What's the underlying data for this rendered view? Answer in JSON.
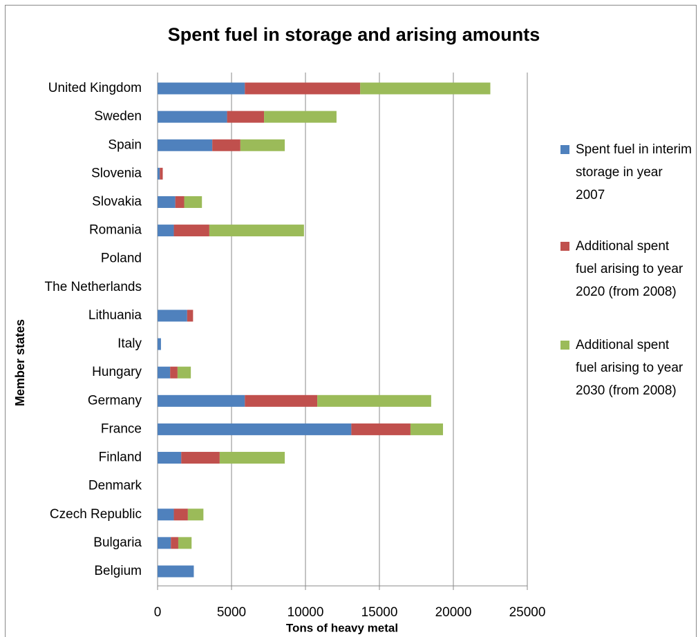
{
  "chart_data": {
    "type": "bar",
    "orientation": "horizontal",
    "stacked": true,
    "title": "Spent fuel in storage and arising amounts",
    "x_label": "Tons of heavy metal",
    "y_label": "Member states",
    "categories": [
      "United Kingdom",
      "Sweden",
      "Spain",
      "Slovenia",
      "Slovakia",
      "Romania",
      "Poland",
      "The Netherlands",
      "Lithuania",
      "Italy",
      "Hungary",
      "Germany",
      "France",
      "Finland",
      "Denmark",
      "Czech Republic",
      "Bulgaria",
      "Belgium"
    ],
    "series": [
      {
        "name": "Spent fuel in interim storage in year 2007",
        "color": "#4f81bd",
        "values": [
          5900,
          4700,
          3700,
          150,
          1200,
          1100,
          0,
          0,
          2000,
          230,
          850,
          5900,
          13100,
          1600,
          0,
          1100,
          900,
          2450
        ]
      },
      {
        "name": "Additional spent fuel arising to year 2020 (from 2008)",
        "color": "#c0504d",
        "values": [
          7800,
          2500,
          1900,
          200,
          600,
          2400,
          0,
          0,
          400,
          0,
          500,
          4900,
          4000,
          2600,
          0,
          950,
          500,
          0
        ]
      },
      {
        "name": "Additional spent fuel arising to year 2030 (from 2008)",
        "color": "#9bbb59",
        "values": [
          8800,
          4900,
          3000,
          0,
          1200,
          6400,
          0,
          0,
          0,
          0,
          900,
          7700,
          2200,
          4400,
          0,
          1050,
          900,
          0
        ]
      }
    ],
    "xlim": [
      0,
      25000
    ],
    "xticks": [
      0,
      5000,
      10000,
      15000,
      20000,
      25000
    ],
    "grid": true,
    "legend": "right"
  }
}
